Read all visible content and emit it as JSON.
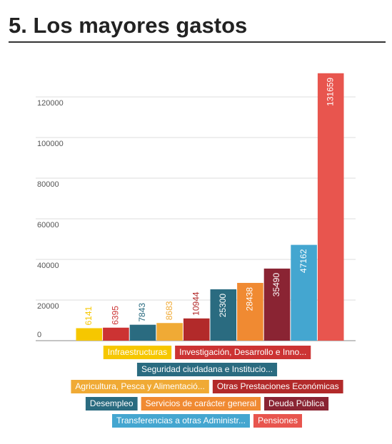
{
  "chart_data": {
    "type": "bar",
    "title": "5. Los mayores gastos",
    "categories": [
      "Infraestructuras",
      "Investigación, Desarrollo e Inno...",
      "Seguridad ciudadana e Institucio...",
      "Agricultura, Pesca y Alimentació...",
      "Otras Prestaciones Económicas",
      "Desempleo",
      "Servicios de carácter general",
      "Deuda Pública",
      "Transferencias a otras Administr...",
      "Pensiones"
    ],
    "values": [
      6141,
      6395,
      7843,
      8683,
      10944,
      25300,
      28438,
      35490,
      47162,
      131659
    ],
    "colors": [
      "#f6c700",
      "#cc3333",
      "#2a6b80",
      "#f0aa35",
      "#b22a2a",
      "#2a6b80",
      "#f08a32",
      "#8a2433",
      "#44a6d0",
      "#e8554e"
    ],
    "ylim": [
      0,
      140000
    ],
    "yticks": [
      0,
      20000,
      40000,
      60000,
      80000,
      100000,
      120000
    ],
    "grid": true
  }
}
